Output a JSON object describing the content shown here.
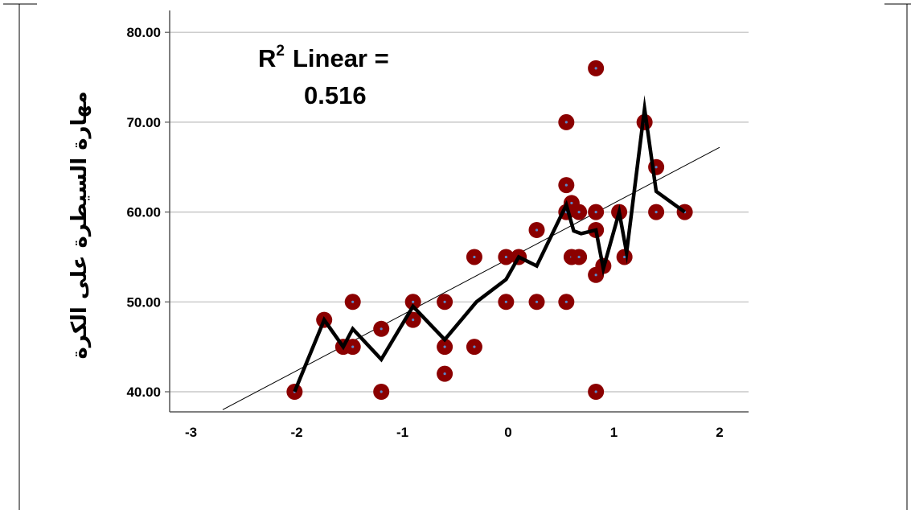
{
  "chart_data": {
    "type": "scatter",
    "title": "",
    "xlabel": "",
    "ylabel": "مهارة السيطرة على الكرة",
    "xlim": [
      -3,
      2
    ],
    "ylim": [
      38,
      81
    ],
    "x_ticks": [
      "-3",
      "-2",
      "-1",
      "0",
      "1",
      "2"
    ],
    "y_ticks": [
      "40.00",
      "50.00",
      "60.00",
      "70.00",
      "80.00"
    ],
    "grid": "horizontal",
    "annotation": {
      "line1_prefix": "R",
      "line1_sup": "2",
      "line1_suffix": "Linear =",
      "line2": "0.516"
    },
    "colors": {
      "points": "#8b0000",
      "point_center": "#5b87c8",
      "fit_line": "#000000",
      "loess_line": "#000000",
      "grid": "#bdbdbd"
    },
    "points": [
      {
        "x": -2.02,
        "y": 40
      },
      {
        "x": -1.74,
        "y": 48
      },
      {
        "x": -1.56,
        "y": 45
      },
      {
        "x": -1.47,
        "y": 50
      },
      {
        "x": -1.47,
        "y": 45
      },
      {
        "x": -1.2,
        "y": 47
      },
      {
        "x": -1.2,
        "y": 40
      },
      {
        "x": -0.9,
        "y": 50
      },
      {
        "x": -0.9,
        "y": 48
      },
      {
        "x": -0.6,
        "y": 50
      },
      {
        "x": -0.6,
        "y": 45
      },
      {
        "x": -0.6,
        "y": 42
      },
      {
        "x": -0.32,
        "y": 55
      },
      {
        "x": -0.32,
        "y": 45
      },
      {
        "x": -0.02,
        "y": 55
      },
      {
        "x": -0.02,
        "y": 50
      },
      {
        "x": 0.1,
        "y": 55
      },
      {
        "x": 0.27,
        "y": 58
      },
      {
        "x": 0.27,
        "y": 50
      },
      {
        "x": 0.55,
        "y": 70
      },
      {
        "x": 0.55,
        "y": 63
      },
      {
        "x": 0.55,
        "y": 60
      },
      {
        "x": 0.55,
        "y": 50
      },
      {
        "x": 0.6,
        "y": 61
      },
      {
        "x": 0.6,
        "y": 55
      },
      {
        "x": 0.67,
        "y": 60
      },
      {
        "x": 0.67,
        "y": 55
      },
      {
        "x": 0.83,
        "y": 76
      },
      {
        "x": 0.83,
        "y": 60
      },
      {
        "x": 0.83,
        "y": 58
      },
      {
        "x": 0.83,
        "y": 53
      },
      {
        "x": 0.83,
        "y": 40
      },
      {
        "x": 0.9,
        "y": 54
      },
      {
        "x": 1.05,
        "y": 60
      },
      {
        "x": 1.1,
        "y": 55
      },
      {
        "x": 1.29,
        "y": 70
      },
      {
        "x": 1.4,
        "y": 65
      },
      {
        "x": 1.4,
        "y": 60
      },
      {
        "x": 1.67,
        "y": 60
      }
    ],
    "fit_line": {
      "x": [
        -2.7,
        2.0
      ],
      "y": [
        38,
        67.2
      ]
    },
    "loess_line": {
      "x": [
        -2.02,
        -1.74,
        -1.56,
        -1.47,
        -1.2,
        -0.9,
        -0.6,
        -0.3,
        -0.02,
        0.1,
        0.27,
        0.55,
        0.62,
        0.69,
        0.83,
        0.9,
        1.05,
        1.12,
        1.29,
        1.4,
        1.67
      ],
      "y": [
        40,
        48,
        45,
        47,
        43.6,
        49.5,
        45.8,
        50,
        52.5,
        55,
        54,
        60.8,
        57.9,
        57.6,
        58,
        53.7,
        60,
        55.5,
        71.5,
        62.3,
        60
      ]
    }
  }
}
